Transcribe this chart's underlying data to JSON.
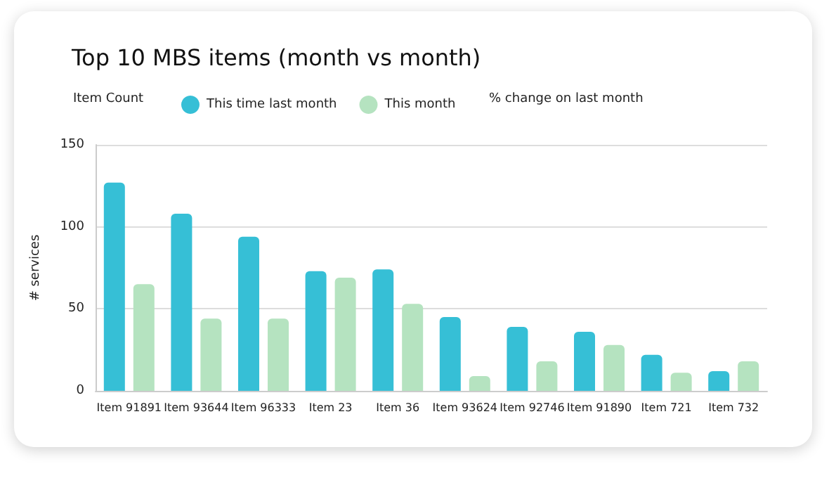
{
  "chart_data": {
    "type": "bar",
    "title": "Top 10 MBS items (month vs month)",
    "ylabel": "# services",
    "categories": [
      "Item 91891",
      "Item 93644",
      "Item 96333",
      "Item 23",
      "Item 36",
      "Item 93624",
      "Item 92746",
      "Item 91890",
      "Item 721",
      "Item 732"
    ],
    "series": [
      {
        "name": "This time last month",
        "color": "#36bfd6",
        "values": [
          127,
          108,
          94,
          73,
          74,
          45,
          39,
          36,
          22,
          12
        ]
      },
      {
        "name": "This month",
        "color": "#b5e3c0",
        "values": [
          65,
          44,
          44,
          69,
          53,
          9,
          18,
          28,
          11,
          18
        ]
      }
    ],
    "annotations": [
      "Item Count",
      "% change on last month"
    ],
    "ylim": [
      0,
      150
    ],
    "yticks": [
      0,
      50,
      100,
      150
    ],
    "grid": "y",
    "legend": "top left"
  }
}
